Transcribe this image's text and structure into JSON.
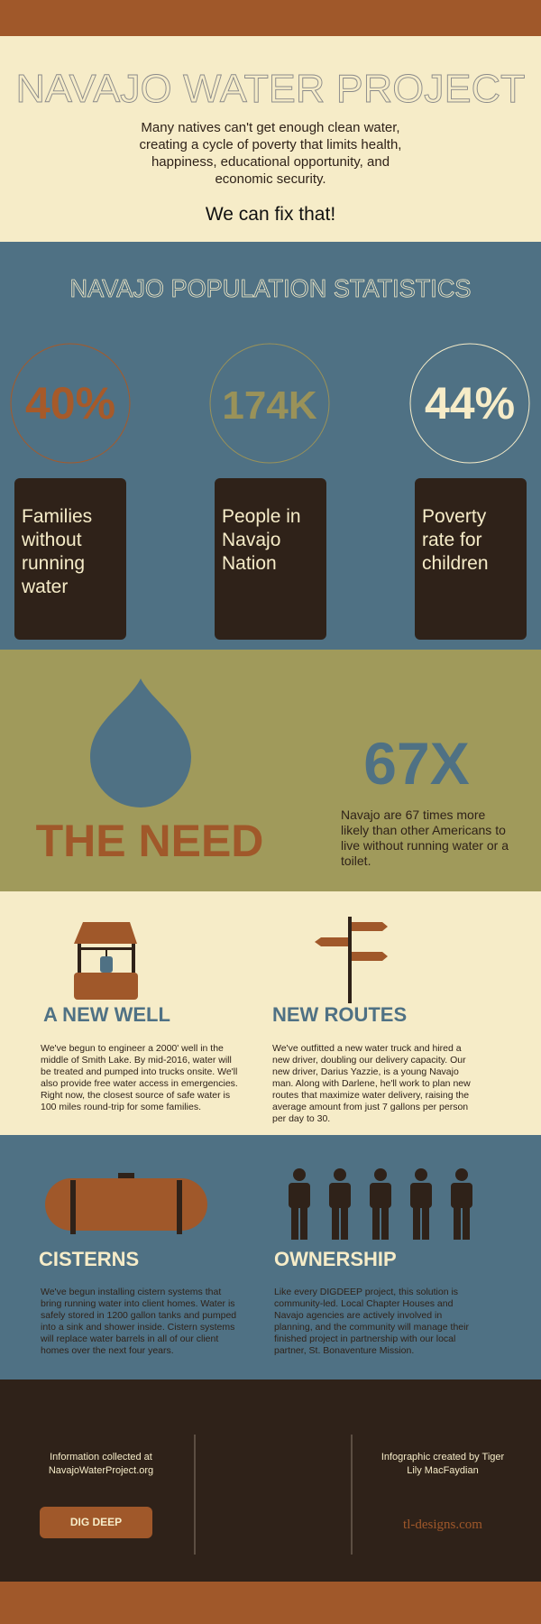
{
  "header": {
    "title": "NAVAJO WATER PROJECT",
    "intro": "Many natives can't get enough clean water, creating a cycle of poverty that limits health, happiness, educational opportunity, and economic security.",
    "tagline": "We can fix that!"
  },
  "stats": {
    "title": "NAVAJO POPULATION STATISTICS",
    "items": [
      {
        "value": "40%",
        "label": "Families without running water"
      },
      {
        "value": "174K",
        "label": "People in Navajo Nation"
      },
      {
        "value": "44%",
        "label": "Poverty rate for children"
      }
    ]
  },
  "need": {
    "title": "THE NEED",
    "stat": "67X",
    "text": "Navajo are 67 times more likely than other Americans to live without running water or a toilet."
  },
  "projects": [
    {
      "title": "A NEW WELL",
      "text": "We've begun to engineer a 2000' well in the middle of Smith Lake. By mid-2016, water will be treated and pumped into trucks onsite. We'll also provide free water access in emergencies. Right now, the closest source of safe water is 100 miles round-trip for some families."
    },
    {
      "title": "NEW ROUTES",
      "text": "We've outfitted a new water truck and hired a new driver, doubling our delivery capacity. Our new driver, Darius Yazzie, is a young Navajo man. Along with Darlene, he'll work to plan new routes that maximize water delivery, raising the average amount from just 7 gallons per person per day to 30."
    },
    {
      "title": "CISTERNS",
      "text": "We've begun installing cistern systems that bring running water into client homes. Water is safely stored in 1200 gallon tanks and pumped into a sink and shower inside. Cistern systems will replace water barrels in all of our client homes over the next four years."
    },
    {
      "title": "OWNERSHIP",
      "text": "Like every DIGDEEP project, this solution is community-led. Local Chapter Houses and Navajo agencies are actively involved in planning, and the community will manage their finished project in partnership with our local partner, St. Bonaventure Mission."
    }
  ],
  "footer": {
    "source": "Information collected at NavajoWaterProject.org",
    "button": "DIG DEEP",
    "credit": "Infographic created by Tiger Lily MacFaydian",
    "site": "tl-designs.com"
  }
}
